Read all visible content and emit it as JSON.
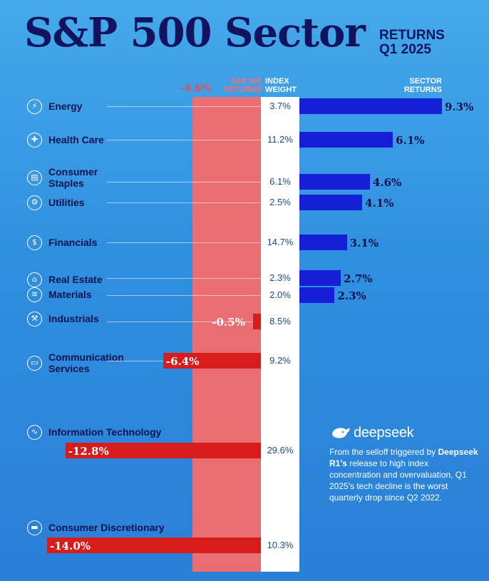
{
  "chart_data": {
    "type": "bar",
    "title": "S&P 500 Sector",
    "subtitle": [
      "RETURNS",
      "Q1 2025"
    ],
    "overall_return": -4.6,
    "overall_return_label": "-4.6%",
    "overall_header": [
      "S&P 500",
      "RETURNS"
    ],
    "weight_header": [
      "INDEX",
      "WEIGHT"
    ],
    "returns_header": [
      "SECTOR",
      "RETURNS"
    ],
    "xlim": [
      -14.0,
      9.3
    ],
    "sectors": [
      {
        "name_lines": [
          "Energy"
        ],
        "icon": "lightning-icon",
        "glyph": "⚡",
        "return": 9.3,
        "return_label": "9.3%",
        "weight": "3.7%"
      },
      {
        "name_lines": [
          "Health Care"
        ],
        "icon": "medical-cross-icon",
        "glyph": "✚",
        "return": 6.1,
        "return_label": "6.1%",
        "weight": "11.2%"
      },
      {
        "name_lines": [
          "Consumer",
          "Staples"
        ],
        "icon": "clipboard-icon",
        "glyph": "▤",
        "return": 4.6,
        "return_label": "4.6%",
        "weight": "6.1%"
      },
      {
        "name_lines": [
          "Utilities"
        ],
        "icon": "gear-icon",
        "glyph": "⚙",
        "return": 4.1,
        "return_label": "4.1%",
        "weight": "2.5%"
      },
      {
        "name_lines": [
          "Financials"
        ],
        "icon": "dollar-icon",
        "glyph": "$",
        "return": 3.1,
        "return_label": "3.1%",
        "weight": "14.7%"
      },
      {
        "name_lines": [
          "Real Estate"
        ],
        "icon": "house-icon",
        "glyph": "⌂",
        "return": 2.7,
        "return_label": "2.7%",
        "weight": "2.3%"
      },
      {
        "name_lines": [
          "Materials"
        ],
        "icon": "layers-icon",
        "glyph": "≋",
        "return": 2.3,
        "return_label": "2.3%",
        "weight": "2.0%"
      },
      {
        "name_lines": [
          "Industrials"
        ],
        "icon": "factory-icon",
        "glyph": "⚒",
        "return": -0.5,
        "return_label": "-0.5%",
        "weight": "8.5%"
      },
      {
        "name_lines": [
          "Communication",
          "Services"
        ],
        "icon": "chat-bubble-icon",
        "glyph": "▭",
        "return": -6.4,
        "return_label": "-6.4%",
        "weight": "9.2%"
      },
      {
        "name_lines": [
          "Information Technology"
        ],
        "icon": "trend-line-icon",
        "glyph": "∿",
        "return": -12.8,
        "return_label": "-12.8%",
        "weight": "29.6%"
      },
      {
        "name_lines": [
          "Consumer Discretionary"
        ],
        "icon": "credit-card-icon",
        "glyph": "▬",
        "return": -14.0,
        "return_label": "-14.0%",
        "weight": "10.3%"
      }
    ]
  },
  "logo": {
    "text": "deepseek",
    "icon": "whale-icon"
  },
  "note": {
    "intro": "From the selloff triggered by ",
    "emphasis": "Deepseek R1's",
    "rest": " release to high index concentration and overvaluation, Q1 2025's tech decline is the worst quarterly drop since Q2 2022."
  },
  "colors": {
    "positive": "#1520d6",
    "negative": "#d81c1c",
    "title": "#12135e",
    "overall_band": "#f36b6b"
  }
}
